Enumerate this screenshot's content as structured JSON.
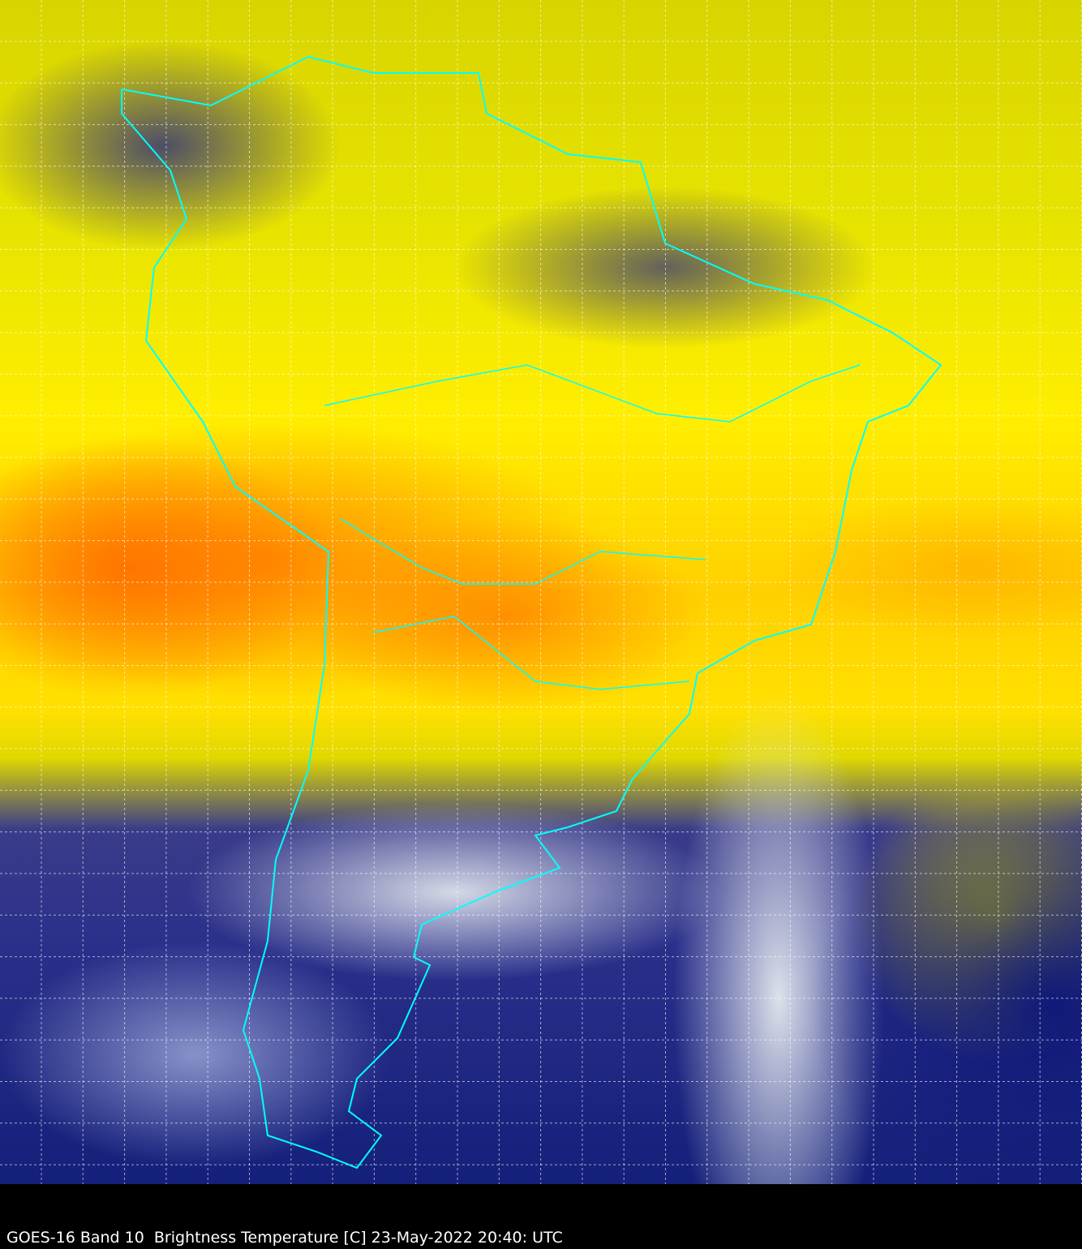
{
  "caption": "GOES-16 Band 10  Brightness Temperature [C] 23-May-2022 20:40: UTC",
  "colors": {
    "border": "#00ffff",
    "grid": "#ffffff",
    "background": "#000000"
  }
}
